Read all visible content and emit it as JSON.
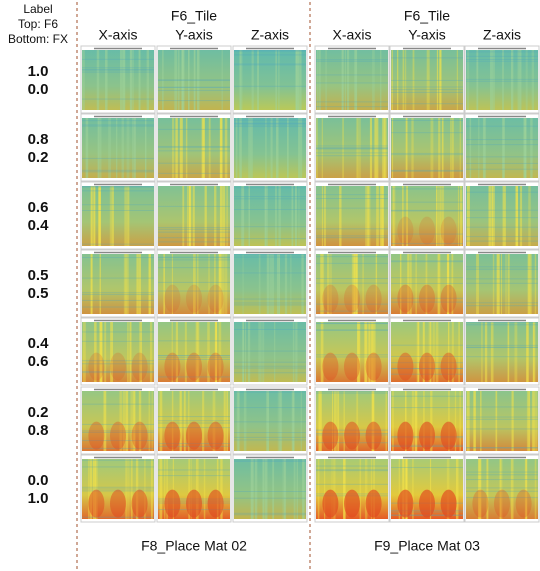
{
  "label_header": [
    "Label",
    "Top: F6",
    "Bottom: FX"
  ],
  "rows": [
    {
      "top": "1.0",
      "bottom": "0.0"
    },
    {
      "top": "0.8",
      "bottom": "0.2"
    },
    {
      "top": "0.6",
      "bottom": "0.4"
    },
    {
      "top": "0.5",
      "bottom": "0.5"
    },
    {
      "top": "0.4",
      "bottom": "0.6"
    },
    {
      "top": "0.2",
      "bottom": "0.8"
    },
    {
      "top": "0.0",
      "bottom": "1.0"
    }
  ],
  "panels": [
    {
      "title": "F6_Tile",
      "columns": [
        "X-axis",
        "Y-axis",
        "Z-axis"
      ],
      "caption": "F8_Place Mat 02"
    },
    {
      "title": "F6_Tile",
      "columns": [
        "X-axis",
        "Y-axis",
        "Z-axis"
      ],
      "caption": "F9_Place Mat 03"
    }
  ]
}
